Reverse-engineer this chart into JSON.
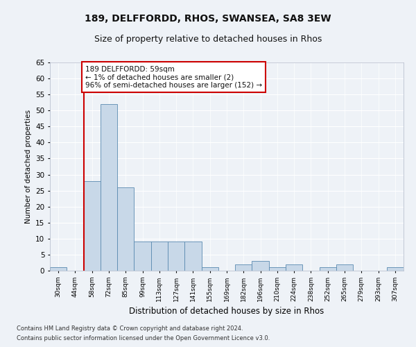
{
  "title1": "189, DELFFORDD, RHOS, SWANSEA, SA8 3EW",
  "title2": "Size of property relative to detached houses in Rhos",
  "xlabel": "Distribution of detached houses by size in Rhos",
  "ylabel": "Number of detached properties",
  "categories": [
    "30sqm",
    "44sqm",
    "58sqm",
    "72sqm",
    "85sqm",
    "99sqm",
    "113sqm",
    "127sqm",
    "141sqm",
    "155sqm",
    "169sqm",
    "182sqm",
    "196sqm",
    "210sqm",
    "224sqm",
    "238sqm",
    "252sqm",
    "265sqm",
    "279sqm",
    "293sqm",
    "307sqm"
  ],
  "values": [
    1,
    0,
    28,
    52,
    26,
    9,
    9,
    9,
    9,
    1,
    0,
    2,
    3,
    1,
    2,
    0,
    1,
    2,
    0,
    0,
    1
  ],
  "bar_color": "#c8d8e8",
  "bar_edge_color": "#5a8ab0",
  "ylim": [
    0,
    65
  ],
  "yticks": [
    0,
    5,
    10,
    15,
    20,
    25,
    30,
    35,
    40,
    45,
    50,
    55,
    60,
    65
  ],
  "annotation_text": "189 DELFFORDD: 59sqm\n← 1% of detached houses are smaller (2)\n96% of semi-detached houses are larger (152) →",
  "annotation_box_color": "#ffffff",
  "annotation_box_edge": "#cc0000",
  "footer1": "Contains HM Land Registry data © Crown copyright and database right 2024.",
  "footer2": "Contains public sector information licensed under the Open Government Licence v3.0.",
  "bg_color": "#eef2f7",
  "grid_color": "#ffffff",
  "title1_fontsize": 10,
  "title2_fontsize": 9,
  "redline_color": "#cc0000",
  "redline_x": 1.5
}
